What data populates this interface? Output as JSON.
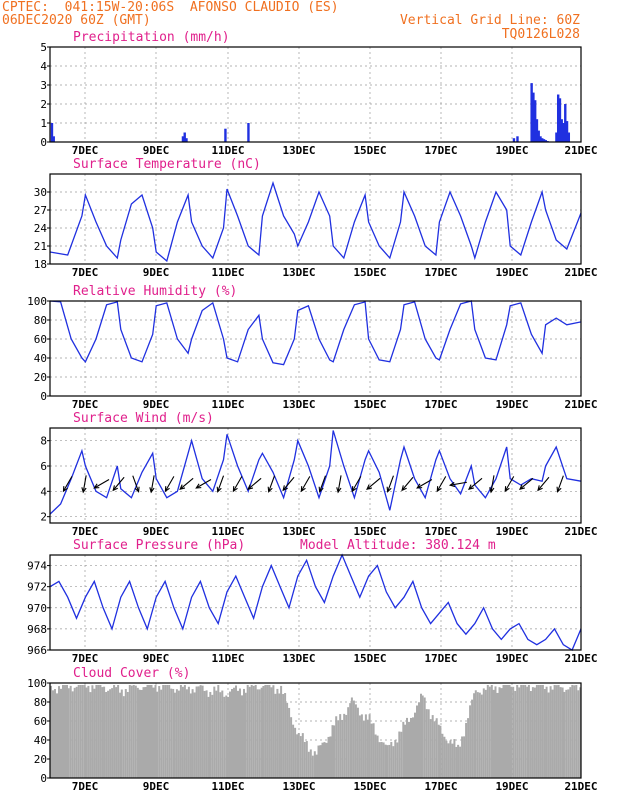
{
  "header": {
    "line1_left": "CPTEC:  041:15W-20:06S  AFONSO CLAUDIO (ES)",
    "line2_left": "06DEC2020 60Z (GMT)",
    "line2_right": "Vertical Grid Line: 60Z",
    "line3_right": "TQ0126L028"
  },
  "colors": {
    "header": "#f07020",
    "panel_title": "#e0208c",
    "series": "#2030e0",
    "cloud": "#aaaaaa",
    "wind_arrow": "#000000"
  },
  "x_ticks": [
    "7DEC",
    "9DEC",
    "11DEC",
    "13DEC",
    "15DEC",
    "17DEC",
    "19DEC",
    "21DEC"
  ],
  "chart_data": [
    {
      "type": "bar",
      "title": "Precipitation (mm/h)",
      "ylim": [
        0,
        5
      ],
      "yticks": [
        "0",
        "1",
        "2",
        "3",
        "4",
        "5"
      ],
      "grid": true,
      "x_unit": "days since 06DEC2020 12Z",
      "x": [
        0.05,
        0.1,
        3.75,
        3.8,
        3.85,
        4.95,
        5.6,
        13.1,
        13.2,
        13.6,
        13.65,
        13.7,
        13.75,
        13.8,
        13.85,
        13.9,
        13.95,
        14.0,
        14.05,
        14.3,
        14.35,
        14.4,
        14.45,
        14.5,
        14.55,
        14.6,
        14.65
      ],
      "values": [
        1.0,
        0.3,
        0.3,
        0.5,
        0.2,
        0.7,
        1.0,
        0.2,
        0.3,
        3.1,
        2.6,
        2.2,
        1.2,
        0.6,
        0.3,
        0.2,
        0.15,
        0.1,
        0.05,
        0.5,
        2.5,
        2.3,
        1.2,
        1.0,
        2.0,
        1.1,
        0.5
      ]
    },
    {
      "type": "line",
      "title": "Surface Temperature (nC)",
      "ylim": [
        18,
        33
      ],
      "yticks": [
        "18",
        "21",
        "24",
        "27",
        "30"
      ],
      "grid": true,
      "series": [
        {
          "x": [
            0,
            0.5,
            0.9,
            1.0,
            1.3,
            1.6,
            1.9,
            2.0,
            2.3,
            2.6,
            2.9,
            3.0,
            3.3,
            3.6,
            3.9,
            4.0,
            4.3,
            4.6,
            4.9,
            5.0,
            5.3,
            5.6,
            5.9,
            6.0,
            6.3,
            6.6,
            6.9,
            7.0,
            7.3,
            7.6,
            7.9,
            8.0,
            8.3,
            8.6,
            8.9,
            9.0,
            9.3,
            9.6,
            9.9,
            10.0,
            10.3,
            10.6,
            10.9,
            11.0,
            11.3,
            11.6,
            11.9,
            12.0,
            12.3,
            12.6,
            12.9,
            13.0,
            13.3,
            13.6,
            13.9,
            14.0,
            14.3,
            14.6,
            14.9,
            15.0
          ],
          "values": [
            20,
            19.5,
            26,
            29.5,
            25,
            21,
            19,
            22,
            28,
            29.5,
            24,
            20,
            18.5,
            25,
            29.5,
            25,
            21,
            19,
            24,
            30.5,
            26,
            21,
            19.5,
            26,
            31.5,
            26,
            23,
            21,
            25,
            30,
            26,
            21,
            19,
            25,
            29.5,
            25,
            21,
            19,
            25,
            30,
            26,
            21,
            19.5,
            25,
            30,
            26,
            21,
            19,
            25,
            30,
            27,
            21,
            19.5,
            25,
            30,
            27,
            22,
            20.5,
            25,
            26.5
          ]
        }
      ]
    },
    {
      "type": "line",
      "title": "Relative Humidity (%)",
      "ylim": [
        0,
        100
      ],
      "yticks": [
        "0",
        "20",
        "40",
        "60",
        "80",
        "100"
      ],
      "grid": true,
      "series": [
        {
          "x": [
            0,
            0.3,
            0.6,
            0.9,
            1.0,
            1.3,
            1.6,
            1.9,
            2.0,
            2.3,
            2.6,
            2.9,
            3.0,
            3.3,
            3.6,
            3.9,
            4.0,
            4.3,
            4.6,
            4.9,
            5.0,
            5.3,
            5.6,
            5.9,
            6.0,
            6.3,
            6.6,
            6.9,
            7.0,
            7.3,
            7.6,
            7.9,
            8.0,
            8.3,
            8.6,
            8.9,
            9.0,
            9.3,
            9.6,
            9.9,
            10.0,
            10.3,
            10.6,
            10.9,
            11.0,
            11.3,
            11.6,
            11.9,
            12.0,
            12.3,
            12.6,
            12.9,
            13.0,
            13.3,
            13.6,
            13.9,
            14.0,
            14.3,
            14.6,
            15.0
          ],
          "values": [
            100,
            99,
            60,
            40,
            36,
            60,
            96,
            99,
            70,
            40,
            36,
            65,
            95,
            98,
            60,
            45,
            60,
            90,
            98,
            60,
            40,
            36,
            70,
            85,
            60,
            35,
            33,
            60,
            90,
            95,
            60,
            38,
            36,
            70,
            96,
            99,
            60,
            38,
            36,
            70,
            96,
            99,
            60,
            40,
            38,
            70,
            97,
            100,
            70,
            40,
            38,
            75,
            95,
            98,
            65,
            45,
            75,
            82,
            75,
            78
          ]
        }
      ]
    },
    {
      "type": "line",
      "title": "Surface Wind (m/s)",
      "ylim": [
        1.5,
        9
      ],
      "yticks": [
        "2",
        "4",
        "6",
        "8"
      ],
      "grid": true,
      "series": [
        {
          "x": [
            0,
            0.3,
            0.6,
            0.9,
            1.0,
            1.3,
            1.6,
            1.9,
            2.0,
            2.3,
            2.6,
            2.9,
            3.0,
            3.3,
            3.6,
            3.9,
            4.0,
            4.3,
            4.6,
            4.9,
            5.0,
            5.3,
            5.6,
            5.9,
            6.0,
            6.3,
            6.6,
            6.9,
            7.0,
            7.3,
            7.6,
            7.9,
            8.0,
            8.3,
            8.6,
            8.9,
            9.0,
            9.3,
            9.6,
            9.9,
            10.0,
            10.3,
            10.6,
            10.9,
            11.0,
            11.3,
            11.6,
            11.9,
            12.0,
            12.3,
            12.6,
            12.9,
            13.0,
            13.3,
            13.6,
            13.9,
            14.0,
            14.3,
            14.6,
            15.0
          ],
          "values": [
            2.2,
            3.0,
            5.0,
            7.2,
            6.0,
            4.0,
            3.5,
            6.0,
            4.2,
            3.5,
            5.5,
            7.0,
            5.0,
            3.5,
            4.0,
            7.0,
            8.0,
            5.0,
            4.0,
            6.5,
            8.5,
            6.0,
            4.0,
            6.5,
            7.0,
            5.5,
            3.5,
            6.5,
            8.0,
            6.0,
            3.5,
            6.0,
            8.8,
            6.0,
            3.5,
            6.5,
            7.2,
            5.5,
            2.5,
            6.5,
            7.5,
            5.0,
            3.5,
            6.5,
            7.2,
            5.0,
            3.8,
            6.0,
            4.5,
            3.5,
            5.0,
            7.5,
            5.0,
            4.5,
            5.0,
            4.8,
            6.0,
            7.5,
            5.0,
            4.8
          ]
        }
      ],
      "wind_direction_deg": [
        30,
        10,
        60,
        40,
        340,
        10,
        30,
        50,
        60,
        20,
        30,
        50,
        20,
        40,
        30,
        20,
        10,
        30,
        50,
        20,
        40,
        60,
        30,
        80,
        50,
        10,
        30,
        50,
        40,
        20
      ]
    },
    {
      "type": "line",
      "title": "Surface Pressure (hPa)",
      "annotation": "Model Altitude: 380.124 m",
      "ylim": [
        966,
        975
      ],
      "yticks": [
        "966",
        "968",
        "970",
        "972",
        "974"
      ],
      "grid": true,
      "series": [
        {
          "x": [
            0,
            0.25,
            0.5,
            0.75,
            1.0,
            1.25,
            1.5,
            1.75,
            2.0,
            2.25,
            2.5,
            2.75,
            3.0,
            3.25,
            3.5,
            3.75,
            4.0,
            4.25,
            4.5,
            4.75,
            5.0,
            5.25,
            5.5,
            5.75,
            6.0,
            6.25,
            6.5,
            6.75,
            7.0,
            7.25,
            7.5,
            7.75,
            8.0,
            8.25,
            8.5,
            8.75,
            9.0,
            9.25,
            9.5,
            9.75,
            10.0,
            10.25,
            10.5,
            10.75,
            11.0,
            11.25,
            11.5,
            11.75,
            12.0,
            12.25,
            12.5,
            12.75,
            13.0,
            13.25,
            13.5,
            13.75,
            14.0,
            14.25,
            14.5,
            14.75,
            15.0
          ],
          "values": [
            972,
            972.5,
            971,
            969,
            971,
            972.5,
            970,
            968,
            971,
            972.5,
            970,
            968,
            971,
            972.5,
            970,
            968,
            971,
            972.5,
            970,
            968.5,
            971.5,
            973,
            971,
            969,
            972,
            974,
            972,
            970,
            973,
            974.5,
            972,
            970.5,
            973,
            975,
            973,
            971,
            973,
            974,
            971.5,
            970,
            971,
            972.5,
            970,
            968.5,
            969.5,
            970.5,
            968.5,
            967.5,
            968.5,
            970,
            968,
            967,
            968,
            968.5,
            967,
            966.5,
            967,
            968,
            966.5,
            966,
            968
          ]
        }
      ]
    },
    {
      "type": "bar",
      "title": "Cloud Cover (%)",
      "ylim": [
        0,
        100
      ],
      "yticks": [
        "0",
        "20",
        "40",
        "60",
        "80",
        "100"
      ],
      "grid": true,
      "x": [
        0,
        0.5,
        1.0,
        1.5,
        2.0,
        2.5,
        3.0,
        3.5,
        4.0,
        4.5,
        5.0,
        5.5,
        6.0,
        6.5,
        7.0,
        7.5,
        8.0,
        8.5,
        9.0,
        9.5,
        10.0,
        10.5,
        11.0,
        11.5,
        12.0,
        12.5,
        13.0,
        13.5,
        14.0,
        14.5,
        15.0
      ],
      "values": [
        95,
        97,
        98,
        96,
        93,
        97,
        98,
        95,
        95,
        92,
        90,
        95,
        98,
        94,
        45,
        25,
        55,
        80,
        60,
        30,
        55,
        85,
        50,
        30,
        92,
        96,
        98,
        98,
        97,
        96,
        95
      ]
    }
  ]
}
